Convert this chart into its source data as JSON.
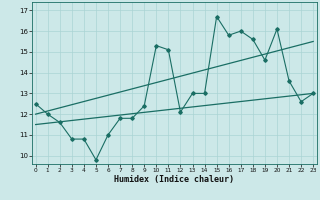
{
  "xlabel": "Humidex (Indice chaleur)",
  "bg_color": "#cce8e8",
  "line_color": "#1a6e64",
  "grid_color": "#aad4d4",
  "x_values": [
    0,
    1,
    2,
    3,
    4,
    5,
    6,
    7,
    8,
    9,
    10,
    11,
    12,
    13,
    14,
    15,
    16,
    17,
    18,
    19,
    20,
    21,
    22,
    23
  ],
  "y_main": [
    12.5,
    12.0,
    11.6,
    10.8,
    10.8,
    9.8,
    11.0,
    11.8,
    11.8,
    12.4,
    15.3,
    15.1,
    12.1,
    13.0,
    13.0,
    16.7,
    15.8,
    16.0,
    15.6,
    14.6,
    16.1,
    13.6,
    12.6,
    13.0
  ],
  "trend1_start": 12.0,
  "trend1_end": 15.5,
  "trend2_start": 11.5,
  "trend2_end": 13.0,
  "ylim_min": 9.6,
  "ylim_max": 17.4,
  "yticks": [
    10,
    11,
    12,
    13,
    14,
    15,
    16,
    17
  ],
  "xlim_min": -0.3,
  "xlim_max": 23.3
}
